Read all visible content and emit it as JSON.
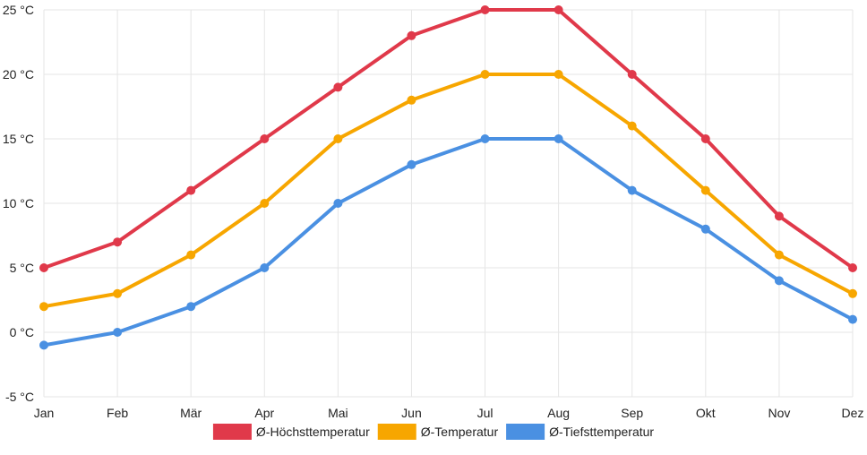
{
  "chart_data": {
    "type": "line",
    "categories": [
      "Jan",
      "Feb",
      "Mär",
      "Apr",
      "Mai",
      "Jun",
      "Jul",
      "Aug",
      "Sep",
      "Okt",
      "Nov",
      "Dez"
    ],
    "y_ticks": [
      -5,
      0,
      5,
      10,
      15,
      20,
      25
    ],
    "y_tick_labels": [
      "-5 °C",
      "0 °C",
      "5 °C",
      "10 °C",
      "15 °C",
      "20 °C",
      "25 °C"
    ],
    "ylim": [
      -5,
      25
    ],
    "grid": true,
    "legend_position": "bottom-center",
    "series": [
      {
        "name": "Ø-Höchsttemperatur",
        "color": "#e0394a",
        "values": [
          5,
          7,
          11,
          15,
          19,
          23,
          25,
          25,
          20,
          15,
          9,
          5
        ]
      },
      {
        "name": "Ø-Temperatur",
        "color": "#f7a600",
        "values": [
          2,
          3,
          6,
          10,
          15,
          18,
          20,
          20,
          16,
          11,
          6,
          3
        ]
      },
      {
        "name": "Ø-Tiefsttemperatur",
        "color": "#4a90e2",
        "values": [
          -1,
          0,
          2,
          5,
          10,
          13,
          15,
          15,
          11,
          8,
          4,
          1
        ]
      }
    ]
  }
}
